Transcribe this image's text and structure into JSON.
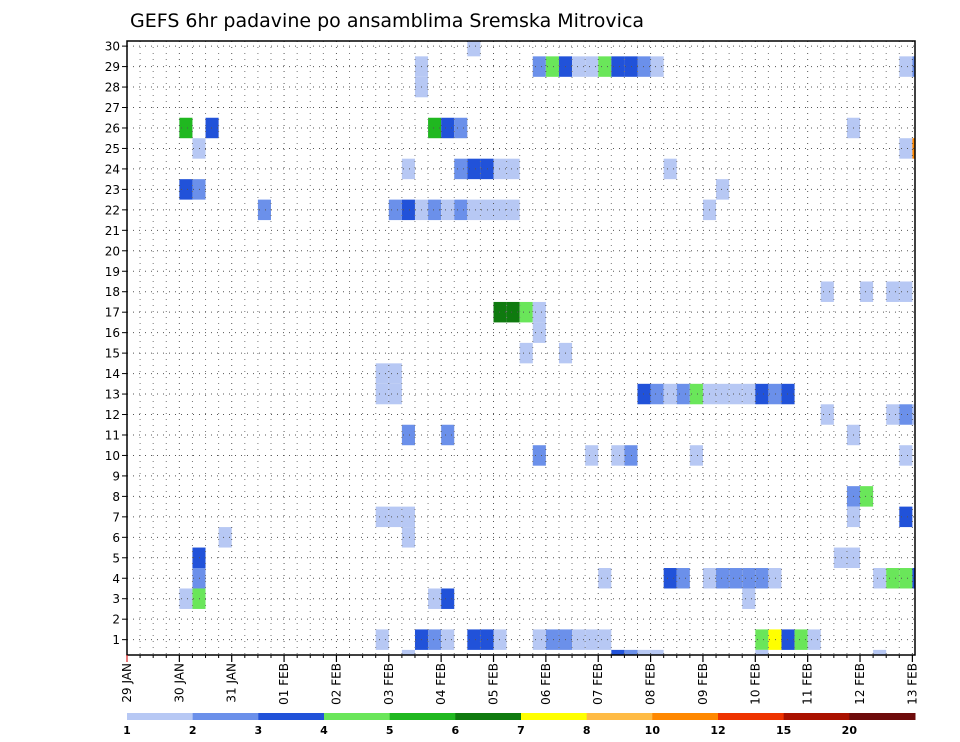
{
  "chart_data": {
    "type": "heatmap",
    "title": "GEFS 6hr padavine po ansamblima Sremska Mitrovica",
    "xlabel": "",
    "ylabel": "",
    "x_tick_labels": [
      "29 JAN",
      "30 JAN",
      "31 JAN",
      "01 FEB",
      "02 FEB",
      "03 FEB",
      "04 FEB",
      "05 FEB",
      "06 FEB",
      "07 FEB",
      "08 FEB",
      "09 FEB",
      "10 FEB",
      "11 FEB",
      "12 FEB",
      "13 FEB"
    ],
    "x_range_days": [
      0,
      15.05
    ],
    "y_tick_labels": [
      "1",
      "2",
      "3",
      "4",
      "5",
      "6",
      "7",
      "8",
      "9",
      "10",
      "11",
      "12",
      "13",
      "14",
      "15",
      "16",
      "17",
      "18",
      "19",
      "20",
      "21",
      "22",
      "23",
      "24",
      "25",
      "26",
      "27",
      "28",
      "29",
      "30"
    ],
    "y_range_member": [
      0.25,
      30.25
    ],
    "step_hours": 6,
    "grid": true,
    "colorbar": {
      "labels": [
        "1",
        "2",
        "3",
        "4",
        "5",
        "6",
        "7",
        "8",
        "10",
        "12",
        "15",
        "20"
      ],
      "colors": [
        "#b7c8f4",
        "#6b90ea",
        "#2152d9",
        "#6ae65a",
        "#20b820",
        "#0f7a0f",
        "#ffff00",
        "#ffbb44",
        "#ff8800",
        "#ee3300",
        "#aa1100",
        "#6e0b0b"
      ]
    },
    "cells": [
      {
        "m": 30,
        "d": 6.5,
        "v": 1
      },
      {
        "m": 29,
        "d": 5.5,
        "v": 1
      },
      {
        "m": 29,
        "d": 7.75,
        "v": 2
      },
      {
        "m": 29,
        "d": 8,
        "v": 4
      },
      {
        "m": 29,
        "d": 8.25,
        "v": 3
      },
      {
        "m": 29,
        "d": 8.5,
        "v": 1
      },
      {
        "m": 29,
        "d": 8.75,
        "v": 1
      },
      {
        "m": 29,
        "d": 9,
        "v": 4
      },
      {
        "m": 29,
        "d": 9.25,
        "v": 3
      },
      {
        "m": 29,
        "d": 9.5,
        "v": 3
      },
      {
        "m": 29,
        "d": 9.75,
        "v": 2
      },
      {
        "m": 29,
        "d": 10,
        "v": 1
      },
      {
        "m": 29,
        "d": 14.75,
        "v": 1
      },
      {
        "m": 29,
        "d": 15,
        "v": 2
      },
      {
        "m": 28,
        "d": 5.5,
        "v": 1
      },
      {
        "m": 26,
        "d": 1,
        "v": 5
      },
      {
        "m": 26,
        "d": 1.5,
        "v": 3
      },
      {
        "m": 26,
        "d": 5.75,
        "v": 5
      },
      {
        "m": 26,
        "d": 6,
        "v": 3
      },
      {
        "m": 26,
        "d": 6.25,
        "v": 2
      },
      {
        "m": 26,
        "d": 13.75,
        "v": 1
      },
      {
        "m": 25,
        "d": 1.25,
        "v": 1
      },
      {
        "m": 25,
        "d": 14.75,
        "v": 1
      },
      {
        "m": 25,
        "d": 15,
        "v": 9
      },
      {
        "m": 24,
        "d": 5.25,
        "v": 1
      },
      {
        "m": 24,
        "d": 6.25,
        "v": 2
      },
      {
        "m": 24,
        "d": 6.5,
        "v": 3
      },
      {
        "m": 24,
        "d": 6.75,
        "v": 3
      },
      {
        "m": 24,
        "d": 7,
        "v": 1
      },
      {
        "m": 24,
        "d": 7.25,
        "v": 1
      },
      {
        "m": 24,
        "d": 10.25,
        "v": 1
      },
      {
        "m": 23,
        "d": 1,
        "v": 3
      },
      {
        "m": 23,
        "d": 1.25,
        "v": 2
      },
      {
        "m": 23,
        "d": 11.25,
        "v": 1
      },
      {
        "m": 22,
        "d": 2.5,
        "v": 2
      },
      {
        "m": 22,
        "d": 5,
        "v": 2
      },
      {
        "m": 22,
        "d": 5.25,
        "v": 3
      },
      {
        "m": 22,
        "d": 5.5,
        "v": 1
      },
      {
        "m": 22,
        "d": 5.75,
        "v": 2
      },
      {
        "m": 22,
        "d": 6,
        "v": 1
      },
      {
        "m": 22,
        "d": 6.25,
        "v": 2
      },
      {
        "m": 22,
        "d": 6.5,
        "v": 1
      },
      {
        "m": 22,
        "d": 6.75,
        "v": 1
      },
      {
        "m": 22,
        "d": 7,
        "v": 1
      },
      {
        "m": 22,
        "d": 7.25,
        "v": 1
      },
      {
        "m": 22,
        "d": 11,
        "v": 1
      },
      {
        "m": 18,
        "d": 13.25,
        "v": 1
      },
      {
        "m": 18,
        "d": 14,
        "v": 1
      },
      {
        "m": 18,
        "d": 14.5,
        "v": 1
      },
      {
        "m": 18,
        "d": 14.75,
        "v": 1
      },
      {
        "m": 17,
        "d": 7,
        "v": 6
      },
      {
        "m": 17,
        "d": 7.25,
        "v": 6
      },
      {
        "m": 17,
        "d": 7.5,
        "v": 4
      },
      {
        "m": 17,
        "d": 7.75,
        "v": 1
      },
      {
        "m": 16,
        "d": 7.75,
        "v": 1
      },
      {
        "m": 15,
        "d": 7.5,
        "v": 1
      },
      {
        "m": 15,
        "d": 8.25,
        "v": 1
      },
      {
        "m": 14,
        "d": 4.75,
        "v": 1
      },
      {
        "m": 14,
        "d": 5,
        "v": 1
      },
      {
        "m": 13,
        "d": 4.75,
        "v": 1
      },
      {
        "m": 13,
        "d": 5,
        "v": 1
      },
      {
        "m": 13,
        "d": 9.75,
        "v": 3
      },
      {
        "m": 13,
        "d": 10,
        "v": 2
      },
      {
        "m": 13,
        "d": 10.25,
        "v": 1
      },
      {
        "m": 13,
        "d": 10.5,
        "v": 2
      },
      {
        "m": 13,
        "d": 10.75,
        "v": 4
      },
      {
        "m": 13,
        "d": 11,
        "v": 1
      },
      {
        "m": 13,
        "d": 11.25,
        "v": 1
      },
      {
        "m": 13,
        "d": 11.5,
        "v": 1
      },
      {
        "m": 13,
        "d": 11.75,
        "v": 1
      },
      {
        "m": 13,
        "d": 12,
        "v": 3
      },
      {
        "m": 13,
        "d": 12.25,
        "v": 2
      },
      {
        "m": 13,
        "d": 12.5,
        "v": 3
      },
      {
        "m": 12,
        "d": 13.25,
        "v": 1
      },
      {
        "m": 12,
        "d": 14.5,
        "v": 1
      },
      {
        "m": 12,
        "d": 14.75,
        "v": 2
      },
      {
        "m": 12,
        "d": 15,
        "v": 1
      },
      {
        "m": 11,
        "d": 5.25,
        "v": 2
      },
      {
        "m": 11,
        "d": 6,
        "v": 2
      },
      {
        "m": 11,
        "d": 13.75,
        "v": 1
      },
      {
        "m": 10,
        "d": 7.75,
        "v": 2
      },
      {
        "m": 10,
        "d": 8.75,
        "v": 1
      },
      {
        "m": 10,
        "d": 9.25,
        "v": 1
      },
      {
        "m": 10,
        "d": 9.5,
        "v": 2
      },
      {
        "m": 10,
        "d": 10.75,
        "v": 1
      },
      {
        "m": 10,
        "d": 14.75,
        "v": 1
      },
      {
        "m": 8,
        "d": 13.75,
        "v": 2
      },
      {
        "m": 8,
        "d": 14,
        "v": 4
      },
      {
        "m": 7,
        "d": 4.75,
        "v": 1
      },
      {
        "m": 7,
        "d": 5,
        "v": 1
      },
      {
        "m": 7,
        "d": 5.25,
        "v": 1
      },
      {
        "m": 7,
        "d": 13.75,
        "v": 1
      },
      {
        "m": 7,
        "d": 14.75,
        "v": 3
      },
      {
        "m": 6,
        "d": 1.75,
        "v": 1
      },
      {
        "m": 6,
        "d": 5.25,
        "v": 1
      },
      {
        "m": 5,
        "d": 1.25,
        "v": 3
      },
      {
        "m": 5,
        "d": 13.5,
        "v": 1
      },
      {
        "m": 5,
        "d": 13.75,
        "v": 1
      },
      {
        "m": 4,
        "d": 1.25,
        "v": 2
      },
      {
        "m": 4,
        "d": 9,
        "v": 1
      },
      {
        "m": 4,
        "d": 10.25,
        "v": 3
      },
      {
        "m": 4,
        "d": 10.5,
        "v": 2
      },
      {
        "m": 4,
        "d": 11,
        "v": 1
      },
      {
        "m": 4,
        "d": 11.25,
        "v": 2
      },
      {
        "m": 4,
        "d": 11.5,
        "v": 2
      },
      {
        "m": 4,
        "d": 11.75,
        "v": 2
      },
      {
        "m": 4,
        "d": 12,
        "v": 2
      },
      {
        "m": 4,
        "d": 12.25,
        "v": 1
      },
      {
        "m": 4,
        "d": 14.25,
        "v": 1
      },
      {
        "m": 4,
        "d": 14.5,
        "v": 4
      },
      {
        "m": 4,
        "d": 14.75,
        "v": 4
      },
      {
        "m": 4,
        "d": 15,
        "v": 3
      },
      {
        "m": 3,
        "d": 1,
        "v": 1
      },
      {
        "m": 3,
        "d": 1.25,
        "v": 4
      },
      {
        "m": 3,
        "d": 5.75,
        "v": 1
      },
      {
        "m": 3,
        "d": 6,
        "v": 3
      },
      {
        "m": 3,
        "d": 11.75,
        "v": 1
      },
      {
        "m": 1,
        "d": 4.75,
        "v": 1
      },
      {
        "m": 1,
        "d": 5.5,
        "v": 3
      },
      {
        "m": 1,
        "d": 5.75,
        "v": 2
      },
      {
        "m": 1,
        "d": 6,
        "v": 1
      },
      {
        "m": 1,
        "d": 6.5,
        "v": 3
      },
      {
        "m": 1,
        "d": 6.75,
        "v": 3
      },
      {
        "m": 1,
        "d": 7,
        "v": 1
      },
      {
        "m": 1,
        "d": 7.75,
        "v": 1
      },
      {
        "m": 1,
        "d": 8,
        "v": 2
      },
      {
        "m": 1,
        "d": 8.25,
        "v": 2
      },
      {
        "m": 1,
        "d": 8.5,
        "v": 1
      },
      {
        "m": 1,
        "d": 8.75,
        "v": 1
      },
      {
        "m": 1,
        "d": 9,
        "v": 1
      },
      {
        "m": 1,
        "d": 12,
        "v": 4
      },
      {
        "m": 1,
        "d": 12.25,
        "v": 7
      },
      {
        "m": 1,
        "d": 12.5,
        "v": 3
      },
      {
        "m": 1,
        "d": 12.75,
        "v": 4
      },
      {
        "m": 1,
        "d": 13,
        "v": 1
      },
      {
        "m": 0,
        "d": 5.25,
        "v": 1
      },
      {
        "m": 0,
        "d": 9.25,
        "v": 3
      },
      {
        "m": 0,
        "d": 9.5,
        "v": 2
      },
      {
        "m": 0,
        "d": 9.75,
        "v": 1
      },
      {
        "m": 0,
        "d": 10,
        "v": 1
      },
      {
        "m": 0,
        "d": 12,
        "v": 1
      },
      {
        "m": 0,
        "d": 14.25,
        "v": 1
      }
    ]
  }
}
